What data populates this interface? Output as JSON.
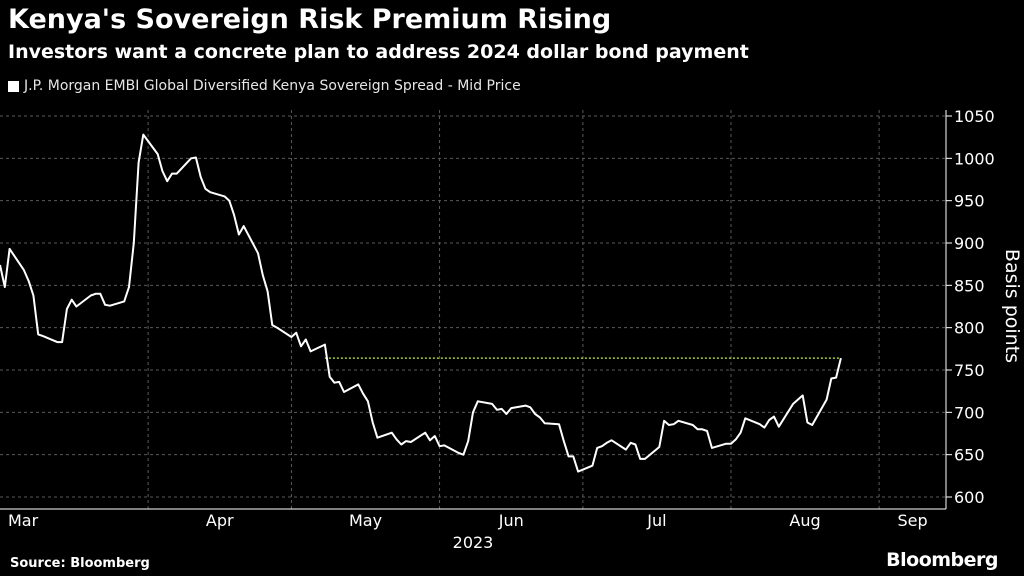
{
  "title": "Kenya's Sovereign Risk Premium Rising",
  "subtitle": "Investors want a concrete plan to address 2024 dollar bond payment",
  "source": "Source: Bloomberg",
  "brand": "Bloomberg",
  "colors": {
    "background": "#000000",
    "line": "#ffffff",
    "reference_line": "#a3d13b",
    "grid": "#5a5a5a"
  },
  "chart_data": {
    "type": "line",
    "title": "Kenya's Sovereign Risk Premium Rising",
    "subtitle": "Investors want a concrete plan to address 2024 dollar bond payment",
    "xlabel": "2023",
    "ylabel": "Basis points",
    "ylim": [
      600,
      1050
    ],
    "yticks": [
      600,
      650,
      700,
      750,
      800,
      850,
      900,
      950,
      1000,
      1050
    ],
    "xlim": [
      "2023-03-01",
      "2023-09-15"
    ],
    "xticks": [
      {
        "label": "Mar",
        "date": "2023-03-01"
      },
      {
        "label": "Apr",
        "date": "2023-04-01"
      },
      {
        "label": "May",
        "date": "2023-05-01"
      },
      {
        "label": "Jun",
        "date": "2023-06-01"
      },
      {
        "label": "Jul",
        "date": "2023-07-01"
      },
      {
        "label": "Aug",
        "date": "2023-08-01"
      },
      {
        "label": "Sep",
        "date": "2023-09-01"
      }
    ],
    "year_label": "2023",
    "grid": true,
    "legend_position": "top-left",
    "reference_line": {
      "y": 764,
      "style": "dotted",
      "color": "#a3d13b"
    },
    "series": [
      {
        "name": "J.P. Morgan EMBI Global Diversified Kenya Sovereign Spread - Mid Price",
        "color": "#ffffff",
        "points": [
          [
            "2023-03-01",
            874
          ],
          [
            "2023-03-02",
            848
          ],
          [
            "2023-03-03",
            893
          ],
          [
            "2023-03-06",
            868
          ],
          [
            "2023-03-07",
            855
          ],
          [
            "2023-03-08",
            838
          ],
          [
            "2023-03-09",
            792
          ],
          [
            "2023-03-10",
            790
          ],
          [
            "2023-03-13",
            783
          ],
          [
            "2023-03-14",
            783
          ],
          [
            "2023-03-15",
            822
          ],
          [
            "2023-03-16",
            833
          ],
          [
            "2023-03-17",
            825
          ],
          [
            "2023-03-20",
            838
          ],
          [
            "2023-03-21",
            840
          ],
          [
            "2023-03-22",
            840
          ],
          [
            "2023-03-23",
            827
          ],
          [
            "2023-03-24",
            826
          ],
          [
            "2023-03-27",
            831
          ],
          [
            "2023-03-28",
            848
          ],
          [
            "2023-03-29",
            900
          ],
          [
            "2023-03-30",
            995
          ],
          [
            "2023-03-31",
            1028
          ],
          [
            "2023-04-03",
            1005
          ],
          [
            "2023-04-04",
            985
          ],
          [
            "2023-04-05",
            973
          ],
          [
            "2023-04-06",
            982
          ],
          [
            "2023-04-07",
            982
          ],
          [
            "2023-04-10",
            1000
          ],
          [
            "2023-04-11",
            1001
          ],
          [
            "2023-04-12",
            978
          ],
          [
            "2023-04-13",
            964
          ],
          [
            "2023-04-14",
            960
          ],
          [
            "2023-04-17",
            955
          ],
          [
            "2023-04-18",
            950
          ],
          [
            "2023-04-19",
            933
          ],
          [
            "2023-04-20",
            910
          ],
          [
            "2023-04-21",
            920
          ],
          [
            "2023-04-24",
            888
          ],
          [
            "2023-04-25",
            862
          ],
          [
            "2023-04-26",
            843
          ],
          [
            "2023-04-27",
            803
          ],
          [
            "2023-04-28",
            800
          ],
          [
            "2023-05-01",
            789
          ],
          [
            "2023-05-02",
            794
          ],
          [
            "2023-05-03",
            778
          ],
          [
            "2023-05-04",
            786
          ],
          [
            "2023-05-05",
            772
          ],
          [
            "2023-05-08",
            780
          ],
          [
            "2023-05-09",
            742
          ],
          [
            "2023-05-10",
            735
          ],
          [
            "2023-05-11",
            736
          ],
          [
            "2023-05-12",
            724
          ],
          [
            "2023-05-15",
            733
          ],
          [
            "2023-05-16",
            722
          ],
          [
            "2023-05-17",
            713
          ],
          [
            "2023-05-18",
            688
          ],
          [
            "2023-05-19",
            670
          ],
          [
            "2023-05-22",
            676
          ],
          [
            "2023-05-23",
            668
          ],
          [
            "2023-05-24",
            662
          ],
          [
            "2023-05-25",
            666
          ],
          [
            "2023-05-26",
            665
          ],
          [
            "2023-05-29",
            676
          ],
          [
            "2023-05-30",
            667
          ],
          [
            "2023-05-31",
            672
          ],
          [
            "2023-06-01",
            660
          ],
          [
            "2023-06-02",
            661
          ],
          [
            "2023-06-05",
            652
          ],
          [
            "2023-06-06",
            650
          ],
          [
            "2023-06-07",
            666
          ],
          [
            "2023-06-08",
            700
          ],
          [
            "2023-06-09",
            713
          ],
          [
            "2023-06-12",
            710
          ],
          [
            "2023-06-13",
            703
          ],
          [
            "2023-06-14",
            704
          ],
          [
            "2023-06-15",
            698
          ],
          [
            "2023-06-16",
            705
          ],
          [
            "2023-06-19",
            708
          ],
          [
            "2023-06-20",
            706
          ],
          [
            "2023-06-21",
            698
          ],
          [
            "2023-06-22",
            694
          ],
          [
            "2023-06-23",
            687
          ],
          [
            "2023-06-26",
            686
          ],
          [
            "2023-06-27",
            666
          ],
          [
            "2023-06-28",
            648
          ],
          [
            "2023-06-29",
            648
          ],
          [
            "2023-06-30",
            630
          ],
          [
            "2023-07-03",
            637
          ],
          [
            "2023-07-04",
            658
          ],
          [
            "2023-07-05",
            660
          ],
          [
            "2023-07-06",
            664
          ],
          [
            "2023-07-07",
            667
          ],
          [
            "2023-07-10",
            656
          ],
          [
            "2023-07-11",
            664
          ],
          [
            "2023-07-12",
            662
          ],
          [
            "2023-07-13",
            645
          ],
          [
            "2023-07-14",
            645
          ],
          [
            "2023-07-17",
            659
          ],
          [
            "2023-07-18",
            690
          ],
          [
            "2023-07-19",
            685
          ],
          [
            "2023-07-20",
            686
          ],
          [
            "2023-07-21",
            690
          ],
          [
            "2023-07-24",
            685
          ],
          [
            "2023-07-25",
            680
          ],
          [
            "2023-07-26",
            680
          ],
          [
            "2023-07-27",
            678
          ],
          [
            "2023-07-28",
            658
          ],
          [
            "2023-07-31",
            663
          ],
          [
            "2023-08-01",
            663
          ],
          [
            "2023-08-02",
            668
          ],
          [
            "2023-08-03",
            676
          ],
          [
            "2023-08-04",
            693
          ],
          [
            "2023-08-07",
            686
          ],
          [
            "2023-08-08",
            682
          ],
          [
            "2023-08-09",
            691
          ],
          [
            "2023-08-10",
            695
          ],
          [
            "2023-08-11",
            683
          ],
          [
            "2023-08-14",
            710
          ],
          [
            "2023-08-15",
            715
          ],
          [
            "2023-08-16",
            720
          ],
          [
            "2023-08-17",
            688
          ],
          [
            "2023-08-18",
            685
          ],
          [
            "2023-08-21",
            715
          ],
          [
            "2023-08-22",
            740
          ],
          [
            "2023-08-23",
            741
          ],
          [
            "2023-08-24",
            764
          ]
        ]
      }
    ]
  }
}
